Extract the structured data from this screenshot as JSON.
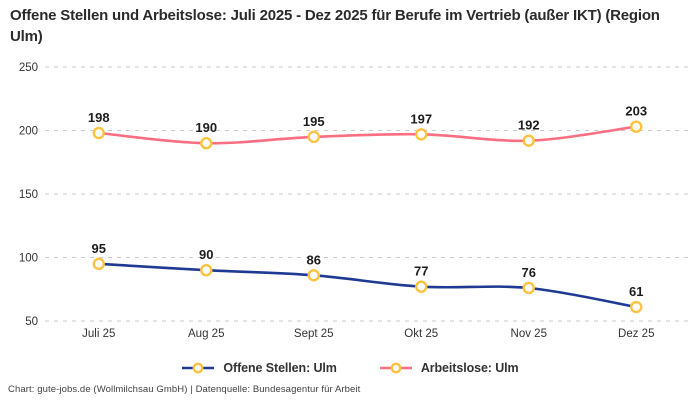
{
  "chart_data": {
    "type": "line",
    "title": "Offene Stellen und Arbeitslose: Juli 2025 - Dez 2025 für Berufe im Vertrieb (außer IKT) (Region Ulm)",
    "categories": [
      "Juli 25",
      "Aug 25",
      "Sept 25",
      "Okt 25",
      "Nov 25",
      "Dez 25"
    ],
    "series": [
      {
        "name": "Offene Stellen: Ulm",
        "values": [
          95,
          90,
          86,
          77,
          76,
          61
        ],
        "color_key": "offene_stellen"
      },
      {
        "name": "Arbeitslose: Ulm",
        "values": [
          198,
          190,
          195,
          197,
          192,
          203
        ],
        "color_key": "arbeitslose"
      }
    ],
    "ylim": [
      50,
      250
    ],
    "yticks": [
      50,
      100,
      150,
      200,
      250
    ],
    "grid": "horizontal-dashed",
    "legend_position": "bottom",
    "xlabel": "",
    "ylabel": ""
  },
  "colors": {
    "offene_stellen": "#1F3A93",
    "arbeitslose": "#F96E80",
    "marker_ring": "#FCC240",
    "marker_fill": "#FFFFFF",
    "gridline": "#CBCBCB",
    "tick_text": "#333333",
    "value_text": "#1D1D1D"
  },
  "footer": {
    "text": "Chart: gute-jobs.de (Wollmilchsau GmbH) | Datenquelle: Bundesagentur für Arbeit"
  }
}
